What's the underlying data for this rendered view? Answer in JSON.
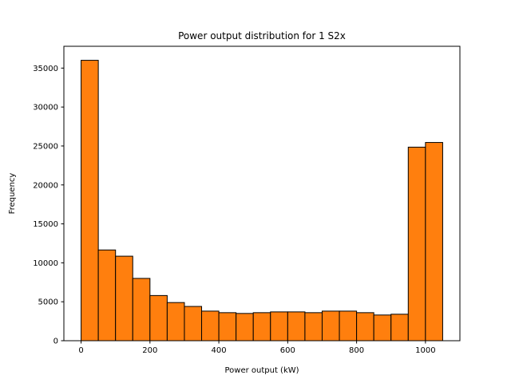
{
  "chart_data": {
    "type": "bar",
    "title": "Power output distribution for 1 S2x",
    "xlabel": "Power output (kW)",
    "ylabel": "Frequency",
    "xlim": [
      -50,
      1100
    ],
    "ylim": [
      0,
      37800
    ],
    "x_ticks": [
      0,
      200,
      400,
      600,
      800,
      1000
    ],
    "y_ticks": [
      0,
      5000,
      10000,
      15000,
      20000,
      25000,
      30000,
      35000
    ],
    "bins": [
      {
        "x0": 0,
        "x1": 50,
        "value": 36000
      },
      {
        "x0": 50,
        "x1": 100,
        "value": 11650
      },
      {
        "x0": 100,
        "x1": 150,
        "value": 10850
      },
      {
        "x0": 150,
        "x1": 200,
        "value": 8000
      },
      {
        "x0": 200,
        "x1": 250,
        "value": 5800
      },
      {
        "x0": 250,
        "x1": 300,
        "value": 4900
      },
      {
        "x0": 300,
        "x1": 350,
        "value": 4400
      },
      {
        "x0": 350,
        "x1": 400,
        "value": 3800
      },
      {
        "x0": 400,
        "x1": 450,
        "value": 3600
      },
      {
        "x0": 450,
        "x1": 500,
        "value": 3500
      },
      {
        "x0": 500,
        "x1": 550,
        "value": 3600
      },
      {
        "x0": 550,
        "x1": 600,
        "value": 3700
      },
      {
        "x0": 600,
        "x1": 650,
        "value": 3700
      },
      {
        "x0": 650,
        "x1": 700,
        "value": 3600
      },
      {
        "x0": 700,
        "x1": 750,
        "value": 3800
      },
      {
        "x0": 750,
        "x1": 800,
        "value": 3800
      },
      {
        "x0": 800,
        "x1": 850,
        "value": 3600
      },
      {
        "x0": 850,
        "x1": 900,
        "value": 3300
      },
      {
        "x0": 900,
        "x1": 950,
        "value": 3400
      },
      {
        "x0": 950,
        "x1": 1000,
        "value": 24850
      },
      {
        "x0": 1000,
        "x1": 1050,
        "value": 25450
      }
    ],
    "bar_color": "#ff7f0e",
    "edge_color": "#000000",
    "grid": false,
    "legend": "none"
  }
}
